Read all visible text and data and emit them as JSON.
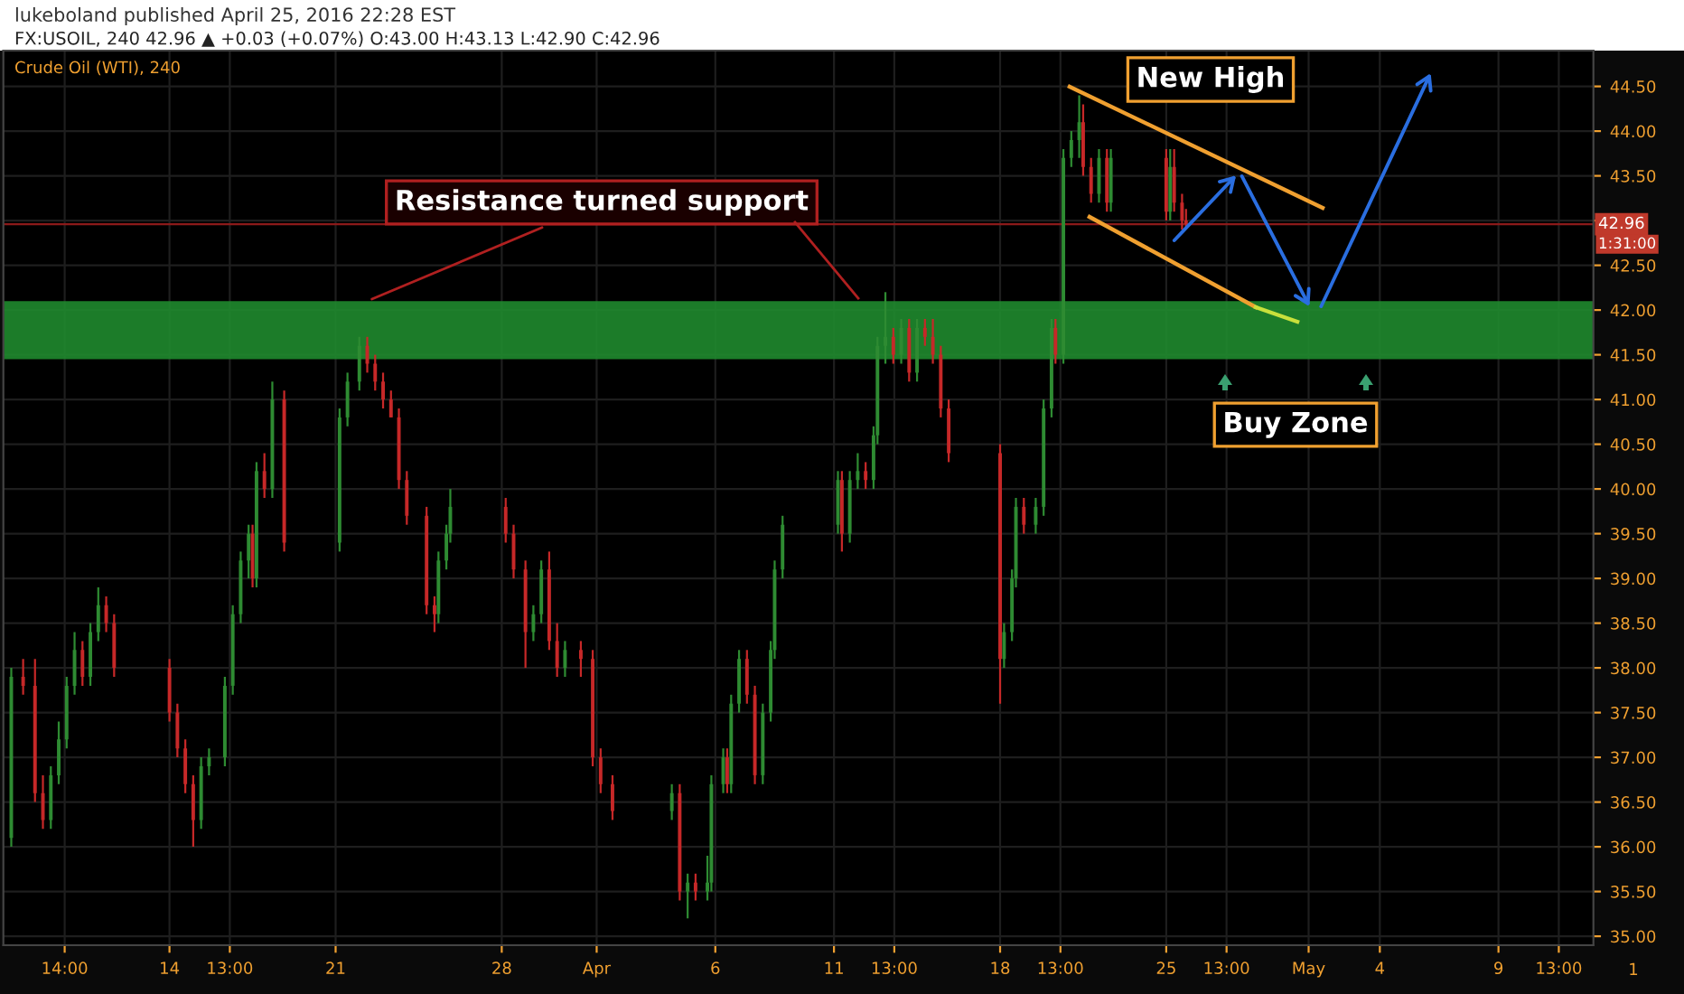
{
  "chart_data": {
    "type": "candlestick",
    "title": "lukeboland published April 25, 2016 22:28 EST",
    "subtitle": "FX:USOIL, 240 42.96 ▲ +0.03 (+0.07%) O:43.00 H:43.13 L:42.90 C:42.96",
    "annotations": [
      "Crude Oil (WTI), 240",
      {
        "text": "Resistance turned support",
        "x": "2016-03-22T08:00",
        "y": 42.1
      },
      "New High",
      "Buy Zone",
      "1:31:00",
      "1"
    ],
    "x": [
      "2016-03-07T08:00",
      "2016-03-07T20:00",
      "2016-03-08T08:00",
      "2016-03-08T16:00",
      "2016-03-09T00:00",
      "2016-03-09T08:00",
      "2016-03-09T16:00",
      "2016-03-10T00:00",
      "2016-03-10T08:00",
      "2016-03-10T16:00",
      "2016-03-11T00:00",
      "2016-03-11T08:00",
      "2016-03-11T16:00",
      "2016-03-14T00:00",
      "2016-03-14T08:00",
      "2016-03-14T16:00",
      "2016-03-15T00:00",
      "2016-03-15T08:00",
      "2016-03-15T16:00",
      "2016-03-16T08:00",
      "2016-03-16T16:00",
      "2016-03-17T00:00",
      "2016-03-17T08:00",
      "2016-03-17T12:00",
      "2016-03-17T16:00",
      "2016-03-18T00:00",
      "2016-03-18T08:00",
      "2016-03-18T20:00",
      "2016-03-21T04:00",
      "2016-03-21T12:00",
      "2016-03-22T00:00",
      "2016-03-22T08:00",
      "2016-03-22T16:00",
      "2016-03-23T00:00",
      "2016-03-23T08:00",
      "2016-03-23T16:00",
      "2016-03-24T00:00",
      "2016-03-24T20:00",
      "2016-03-25T04:00",
      "2016-03-25T08:00",
      "2016-03-25T16:00",
      "2016-03-25T20:00",
      "2016-03-28T04:00",
      "2016-03-28T12:00",
      "2016-03-29T00:00",
      "2016-03-29T08:00",
      "2016-03-29T16:00",
      "2016-03-30T00:00",
      "2016-03-30T08:00",
      "2016-03-30T16:00",
      "2016-03-31T08:00",
      "2016-03-31T20:00",
      "2016-04-01T04:00",
      "2016-04-01T16:00",
      "2016-04-04T04:00",
      "2016-04-04T12:00",
      "2016-04-04T20:00",
      "2016-04-05T04:00",
      "2016-04-05T16:00",
      "2016-04-05T20:00",
      "2016-04-06T08:00",
      "2016-04-06T12:00",
      "2016-04-06T16:00",
      "2016-04-07T00:00",
      "2016-04-07T08:00",
      "2016-04-07T16:00",
      "2016-04-08T00:00",
      "2016-04-08T08:00",
      "2016-04-08T12:00",
      "2016-04-08T20:00",
      "2016-04-11T04:00",
      "2016-04-11T08:00",
      "2016-04-11T16:00",
      "2016-04-12T00:00",
      "2016-04-12T08:00",
      "2016-04-12T16:00",
      "2016-04-12T20:00",
      "2016-04-13T04:00",
      "2016-04-13T12:00",
      "2016-04-13T20:00",
      "2016-04-14T04:00",
      "2016-04-14T12:00",
      "2016-04-14T20:00",
      "2016-04-15T04:00",
      "2016-04-15T12:00",
      "2016-04-15T20:00",
      "2016-04-18T00:00",
      "2016-04-18T04:00",
      "2016-04-18T12:00",
      "2016-04-18T16:00",
      "2016-04-19T00:00",
      "2016-04-19T12:00",
      "2016-04-19T20:00",
      "2016-04-20T04:00",
      "2016-04-20T08:00",
      "2016-04-20T16:00",
      "2016-04-21T00:00",
      "2016-04-21T08:00",
      "2016-04-21T12:00",
      "2016-04-21T20:00",
      "2016-04-22T04:00",
      "2016-04-22T12:00",
      "2016-04-22T16:00",
      "2016-04-25T00:00",
      "2016-04-25T04:00",
      "2016-04-25T08:00",
      "2016-04-25T16:00",
      "2016-04-25T20:00"
    ],
    "ohlc": [
      [
        36.1,
        38.0,
        36.0,
        37.9
      ],
      [
        37.9,
        38.1,
        37.7,
        37.8
      ],
      [
        37.8,
        38.1,
        36.5,
        36.6
      ],
      [
        36.6,
        36.8,
        36.2,
        36.3
      ],
      [
        36.3,
        36.9,
        36.2,
        36.8
      ],
      [
        36.8,
        37.4,
        36.7,
        37.2
      ],
      [
        37.2,
        37.9,
        37.1,
        37.8
      ],
      [
        37.8,
        38.4,
        37.7,
        38.2
      ],
      [
        38.2,
        38.3,
        37.8,
        37.9
      ],
      [
        37.9,
        38.5,
        37.8,
        38.4
      ],
      [
        38.4,
        38.9,
        38.3,
        38.7
      ],
      [
        38.7,
        38.8,
        38.4,
        38.5
      ],
      [
        38.5,
        38.6,
        37.9,
        38.0
      ],
      [
        38.0,
        38.1,
        37.4,
        37.5
      ],
      [
        37.5,
        37.6,
        37.0,
        37.1
      ],
      [
        37.1,
        37.2,
        36.6,
        36.7
      ],
      [
        36.7,
        36.8,
        36.0,
        36.3
      ],
      [
        36.3,
        37.0,
        36.2,
        36.9
      ],
      [
        36.9,
        37.1,
        36.8,
        37.0
      ],
      [
        37.0,
        37.9,
        36.9,
        37.8
      ],
      [
        37.8,
        38.7,
        37.7,
        38.6
      ],
      [
        38.6,
        39.3,
        38.5,
        39.2
      ],
      [
        39.2,
        39.6,
        39.0,
        39.5
      ],
      [
        39.5,
        39.6,
        38.9,
        39.0
      ],
      [
        39.0,
        40.3,
        38.9,
        40.2
      ],
      [
        40.2,
        40.4,
        39.9,
        40.0
      ],
      [
        40.0,
        41.2,
        39.9,
        41.0
      ],
      [
        41.0,
        41.1,
        39.3,
        39.4
      ],
      [
        39.4,
        40.9,
        39.3,
        40.8
      ],
      [
        40.8,
        41.3,
        40.7,
        41.2
      ],
      [
        41.2,
        41.7,
        41.1,
        41.6
      ],
      [
        41.6,
        41.7,
        41.3,
        41.4
      ],
      [
        41.4,
        41.5,
        41.1,
        41.2
      ],
      [
        41.2,
        41.3,
        40.9,
        41.0
      ],
      [
        41.0,
        41.1,
        40.8,
        40.8
      ],
      [
        40.8,
        40.9,
        40.0,
        40.1
      ],
      [
        40.1,
        40.2,
        39.6,
        39.7
      ],
      [
        39.7,
        39.8,
        38.6,
        38.7
      ],
      [
        38.7,
        38.8,
        38.4,
        38.6
      ],
      [
        38.6,
        39.3,
        38.5,
        39.2
      ],
      [
        39.2,
        39.6,
        39.1,
        39.5
      ],
      [
        39.5,
        40.0,
        39.4,
        39.8
      ],
      [
        39.8,
        39.9,
        39.4,
        39.5
      ],
      [
        39.5,
        39.6,
        39.0,
        39.1
      ],
      [
        39.1,
        39.2,
        38.0,
        38.4
      ],
      [
        38.4,
        38.7,
        38.3,
        38.6
      ],
      [
        38.6,
        39.2,
        38.5,
        39.1
      ],
      [
        39.1,
        39.3,
        38.2,
        38.3
      ],
      [
        38.3,
        38.5,
        37.9,
        38.0
      ],
      [
        38.0,
        38.3,
        37.9,
        38.2
      ],
      [
        38.2,
        38.3,
        37.9,
        38.1
      ],
      [
        38.1,
        38.2,
        36.9,
        37.0
      ],
      [
        37.0,
        37.1,
        36.6,
        36.7
      ],
      [
        36.7,
        36.8,
        36.3,
        36.4
      ],
      [
        36.4,
        36.7,
        36.3,
        36.6
      ],
      [
        36.6,
        36.7,
        35.4,
        35.5
      ],
      [
        35.5,
        35.7,
        35.2,
        35.6
      ],
      [
        35.6,
        35.7,
        35.4,
        35.5
      ],
      [
        35.5,
        35.9,
        35.4,
        35.6
      ],
      [
        35.6,
        36.8,
        35.5,
        36.7
      ],
      [
        36.7,
        37.1,
        36.6,
        37.0
      ],
      [
        37.0,
        37.1,
        36.6,
        36.7
      ],
      [
        36.7,
        37.7,
        36.6,
        37.6
      ],
      [
        37.6,
        38.2,
        37.5,
        38.1
      ],
      [
        38.1,
        38.2,
        37.6,
        37.7
      ],
      [
        37.7,
        37.8,
        36.7,
        36.8
      ],
      [
        36.8,
        37.6,
        36.7,
        37.5
      ],
      [
        37.5,
        38.3,
        37.4,
        38.2
      ],
      [
        38.2,
        39.2,
        38.1,
        39.1
      ],
      [
        39.1,
        39.7,
        39.0,
        39.6
      ],
      [
        39.6,
        40.2,
        39.5,
        40.1
      ],
      [
        40.1,
        40.2,
        39.3,
        39.5
      ],
      [
        39.5,
        40.2,
        39.4,
        40.1
      ],
      [
        40.1,
        40.4,
        40.0,
        40.2
      ],
      [
        40.2,
        40.3,
        40.0,
        40.1
      ],
      [
        40.1,
        40.7,
        40.0,
        40.6
      ],
      [
        40.6,
        41.7,
        40.5,
        41.6
      ],
      [
        41.6,
        42.2,
        41.4,
        41.7
      ],
      [
        41.7,
        41.8,
        41.4,
        41.5
      ],
      [
        41.5,
        41.9,
        41.4,
        41.8
      ],
      [
        41.8,
        41.9,
        41.2,
        41.3
      ],
      [
        41.3,
        41.9,
        41.2,
        41.8
      ],
      [
        41.8,
        41.9,
        41.6,
        41.7
      ],
      [
        41.7,
        41.9,
        41.4,
        41.5
      ],
      [
        41.5,
        41.6,
        40.8,
        40.9
      ],
      [
        40.9,
        41.0,
        40.3,
        40.4
      ],
      [
        40.4,
        40.5,
        37.6,
        38.1
      ],
      [
        38.1,
        38.5,
        38.0,
        38.4
      ],
      [
        38.4,
        39.1,
        38.3,
        39.0
      ],
      [
        39.0,
        39.9,
        38.9,
        39.8
      ],
      [
        39.8,
        39.9,
        39.5,
        39.6
      ],
      [
        39.6,
        39.9,
        39.5,
        39.8
      ],
      [
        39.8,
        41.0,
        39.7,
        40.9
      ],
      [
        40.9,
        41.9,
        40.8,
        41.8
      ],
      [
        41.8,
        41.9,
        41.4,
        41.5
      ],
      [
        41.5,
        43.8,
        41.4,
        43.7
      ],
      [
        43.7,
        44.0,
        43.6,
        43.9
      ],
      [
        43.9,
        44.4,
        43.7,
        44.1
      ],
      [
        44.1,
        44.3,
        43.5,
        43.6
      ],
      [
        43.6,
        43.7,
        43.2,
        43.3
      ],
      [
        43.3,
        43.8,
        43.2,
        43.7
      ],
      [
        43.7,
        43.8,
        43.1,
        43.2
      ],
      [
        43.2,
        43.8,
        43.1,
        43.7
      ],
      [
        43.7,
        43.8,
        43.0,
        43.1
      ],
      [
        43.1,
        43.8,
        43.0,
        43.6
      ],
      [
        43.6,
        43.8,
        43.1,
        43.2
      ],
      [
        43.2,
        43.3,
        42.9,
        43.0
      ],
      [
        43.0,
        43.13,
        42.9,
        42.96
      ]
    ],
    "xlim": [
      "2016-03-07T00:00",
      "2016-05-13T00:00"
    ],
    "xticks": [
      {
        "value": "2016-03-09T14:00",
        "label": "14:00"
      },
      {
        "value": "2016-03-14",
        "label": "14"
      },
      {
        "value": "2016-03-16T13:00",
        "label": "13:00"
      },
      {
        "value": "2016-03-21",
        "label": "21"
      },
      {
        "value": "2016-03-28",
        "label": "28"
      },
      {
        "value": "2016-04-01",
        "label": "Apr"
      },
      {
        "value": "2016-04-06",
        "label": "6"
      },
      {
        "value": "2016-04-11",
        "label": "11"
      },
      {
        "value": "2016-04-13T13:00",
        "label": "13:00"
      },
      {
        "value": "2016-04-18",
        "label": "18"
      },
      {
        "value": "2016-04-20T13:00",
        "label": "13:00"
      },
      {
        "value": "2016-04-25",
        "label": "25"
      },
      {
        "value": "2016-04-27T13:00",
        "label": "13:00"
      },
      {
        "value": "2016-05-01",
        "label": "May"
      },
      {
        "value": "2016-05-04",
        "label": "4"
      },
      {
        "value": "2016-05-09",
        "label": "9"
      },
      {
        "value": "2016-05-11T13:00",
        "label": "13:00"
      }
    ],
    "ylim": [
      34.9,
      44.9
    ],
    "yticks": [
      {
        "value": 35,
        "label": "35.00"
      },
      {
        "value": 35.5,
        "label": "35.50"
      },
      {
        "value": 36,
        "label": "36.00"
      },
      {
        "value": 36.5,
        "label": "36.50"
      },
      {
        "value": 37,
        "label": "37.00"
      },
      {
        "value": 37.5,
        "label": "37.50"
      },
      {
        "value": 38,
        "label": "38.00"
      },
      {
        "value": 38.5,
        "label": "38.50"
      },
      {
        "value": 39,
        "label": "39.00"
      },
      {
        "value": 39.5,
        "label": "39.50"
      },
      {
        "value": 40,
        "label": "40.00"
      },
      {
        "value": 40.5,
        "label": "40.50"
      },
      {
        "value": 41,
        "label": "41.00"
      },
      {
        "value": 41.5,
        "label": "41.50"
      },
      {
        "value": 42,
        "label": "42.00"
      },
      {
        "value": 42.5,
        "label": "42.50"
      },
      {
        "value": 43,
        "label": null
      },
      {
        "value": 43.5,
        "label": "43.50"
      },
      {
        "value": 44,
        "label": "44.00"
      },
      {
        "value": 44.5,
        "label": "44.50"
      }
    ],
    "ref_lines": [
      {
        "axis": "y",
        "value": 42.96,
        "label": "42.96",
        "color": "#8b1a1a"
      }
    ],
    "bands": [
      {
        "axis": "y",
        "from": 41.45,
        "to": 42.1,
        "color": "#1f8a2e"
      }
    ],
    "grid": true
  }
}
